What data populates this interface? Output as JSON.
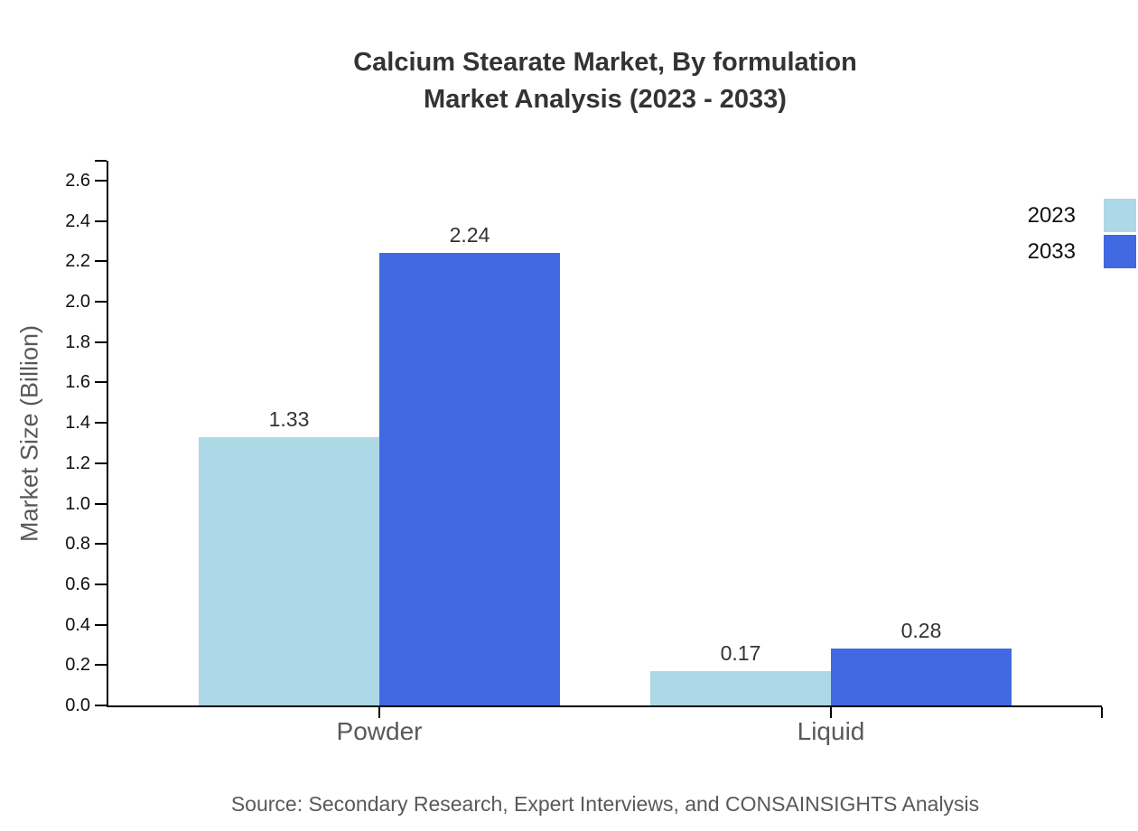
{
  "title": {
    "line1": "Calcium Stearate Market, By formulation",
    "line2": "Market Analysis (2023 - 2033)"
  },
  "source_note": "Source: Secondary Research, Expert Interviews, and CONSAINSIGHTS Analysis",
  "colors": {
    "series_2023": "#ADD8E6",
    "series_2033": "#4169E1",
    "title_text": "#333333",
    "axis_tick_text": "#111111",
    "muted_text": "#595959",
    "axis_line": "#000000"
  },
  "chart_data": {
    "type": "bar",
    "title": "Calcium Stearate Market, By formulation Market Analysis (2023 - 2033)",
    "categories": [
      "Powder",
      "Liquid"
    ],
    "series": [
      {
        "name": "2023",
        "color": "#ADD8E6",
        "values": [
          1.33,
          0.17
        ],
        "labels": [
          "1.33",
          "0.17"
        ]
      },
      {
        "name": "2033",
        "color": "#4169E1",
        "values": [
          2.24,
          0.28
        ],
        "labels": [
          "2.24",
          "0.28"
        ]
      }
    ],
    "xlabel": "",
    "ylabel": "Market Size (Billion)",
    "ylim": [
      0,
      2.6
    ],
    "ytick_step": 0.2,
    "ytick_labels": [
      "0.0",
      "0.2",
      "0.4",
      "0.6",
      "0.8",
      "1.0",
      "1.2",
      "1.4",
      "1.6",
      "1.8",
      "2.0",
      "2.2",
      "2.4",
      "2.6"
    ],
    "xlim": [
      -0.6,
      1.6
    ],
    "bar_width_units": 0.4,
    "grid": false,
    "legend_position": "upper-right-outside"
  }
}
